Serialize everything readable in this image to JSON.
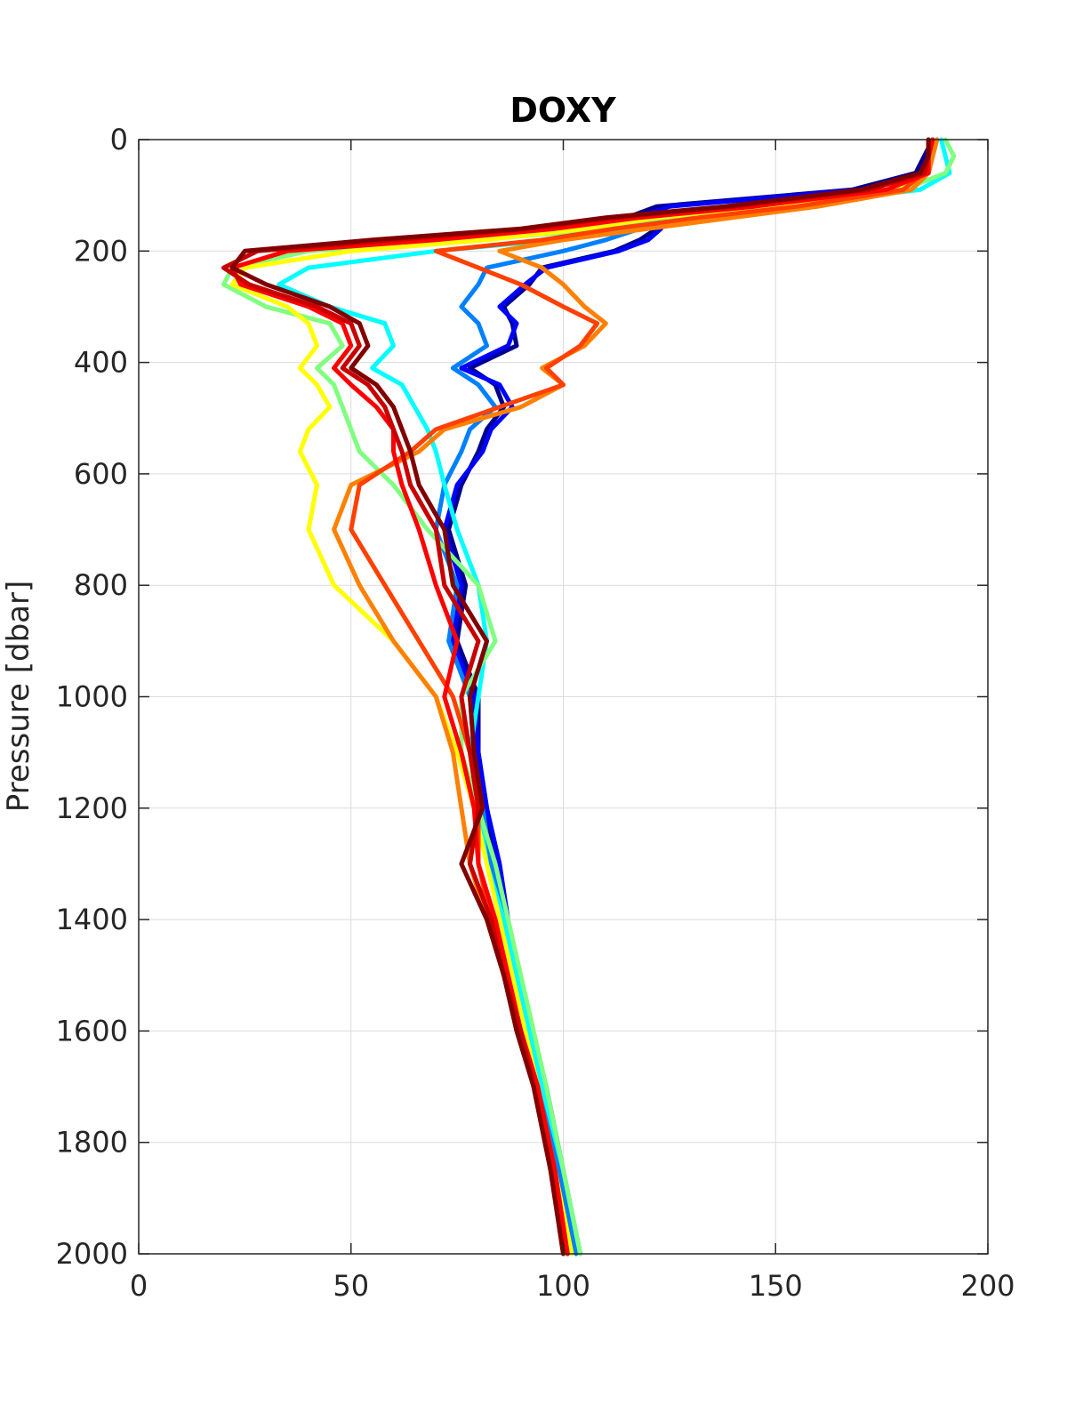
{
  "chart_data": {
    "type": "line",
    "title": "DOXY",
    "xlabel": "",
    "ylabel": "Pressure [dbar]",
    "xlim": [
      0,
      200
    ],
    "ylim": [
      0,
      2000
    ],
    "y_reversed": true,
    "xticks": [
      "0",
      "50",
      "100",
      "150",
      "200"
    ],
    "yticks": [
      "0",
      "200",
      "400",
      "600",
      "800",
      "1000",
      "1200",
      "1400",
      "1600",
      "1800",
      "2000"
    ],
    "grid": true,
    "legend": "none",
    "colormap": "jet",
    "series": [
      {
        "color": "#00008f",
        "x": [
          187,
          185,
          183,
          168,
          122,
          115,
          122,
          118,
          112,
          95,
          92,
          86,
          88,
          89,
          78,
          84,
          86,
          82,
          80,
          76,
          73,
          77,
          75,
          80,
          80,
          82,
          84,
          86,
          88,
          91,
          95,
          99,
          104
        ],
        "y": [
          0,
          30,
          60,
          90,
          120,
          140,
          160,
          180,
          200,
          230,
          260,
          300,
          330,
          370,
          410,
          440,
          480,
          520,
          560,
          620,
          700,
          800,
          900,
          1000,
          1100,
          1200,
          1300,
          1400,
          1500,
          1600,
          1700,
          1850,
          2000
        ]
      },
      {
        "color": "#0000ff",
        "x": [
          188,
          186,
          184,
          170,
          125,
          117,
          123,
          120,
          113,
          96,
          91,
          85,
          89,
          87,
          76,
          85,
          88,
          83,
          81,
          75,
          72,
          76,
          74,
          79,
          80,
          82,
          85,
          87,
          89,
          92,
          96,
          100,
          104
        ],
        "y": [
          0,
          30,
          60,
          90,
          120,
          140,
          160,
          180,
          200,
          230,
          260,
          300,
          330,
          370,
          410,
          440,
          480,
          520,
          560,
          620,
          700,
          800,
          900,
          1000,
          1100,
          1200,
          1300,
          1400,
          1500,
          1600,
          1700,
          1850,
          2000
        ]
      },
      {
        "color": "#0080ff",
        "x": [
          188,
          187,
          186,
          178,
          140,
          120,
          118,
          110,
          100,
          82,
          80,
          76,
          80,
          82,
          74,
          80,
          84,
          78,
          76,
          72,
          70,
          75,
          73,
          78,
          79,
          81,
          83,
          86,
          88,
          92,
          95,
          99,
          103
        ],
        "y": [
          0,
          30,
          60,
          90,
          120,
          140,
          160,
          180,
          200,
          230,
          260,
          300,
          330,
          370,
          410,
          440,
          480,
          520,
          560,
          620,
          700,
          800,
          900,
          1000,
          1100,
          1200,
          1300,
          1400,
          1500,
          1600,
          1700,
          1850,
          2000
        ]
      },
      {
        "color": "#00ffff",
        "x": [
          189,
          190,
          191,
          184,
          150,
          128,
          115,
          98,
          70,
          40,
          33,
          45,
          58,
          60,
          55,
          62,
          65,
          68,
          70,
          72,
          75,
          80,
          82,
          80,
          78,
          80,
          82,
          86,
          89,
          92,
          95,
          100,
          104
        ],
        "y": [
          0,
          30,
          60,
          90,
          120,
          140,
          160,
          180,
          200,
          230,
          260,
          300,
          330,
          370,
          410,
          440,
          480,
          520,
          560,
          620,
          700,
          800,
          900,
          1000,
          1100,
          1200,
          1300,
          1400,
          1500,
          1600,
          1700,
          1850,
          2000
        ]
      },
      {
        "color": "#80ff80",
        "x": [
          190,
          192,
          190,
          180,
          150,
          125,
          110,
          80,
          40,
          22,
          20,
          30,
          45,
          48,
          42,
          46,
          48,
          50,
          52,
          60,
          68,
          80,
          84,
          76,
          76,
          80,
          84,
          87,
          90,
          93,
          96,
          100,
          104
        ],
        "y": [
          0,
          30,
          60,
          90,
          120,
          140,
          160,
          180,
          200,
          230,
          260,
          300,
          330,
          370,
          410,
          440,
          480,
          520,
          560,
          620,
          700,
          800,
          900,
          1000,
          1100,
          1200,
          1300,
          1400,
          1500,
          1600,
          1700,
          1850,
          2000
        ]
      },
      {
        "color": "#ffff00",
        "x": [
          186,
          186,
          185,
          178,
          148,
          122,
          105,
          82,
          50,
          25,
          22,
          35,
          40,
          42,
          38,
          42,
          45,
          40,
          38,
          42,
          40,
          46,
          60,
          70,
          75,
          79,
          82,
          85,
          88,
          91,
          94,
          98,
          102
        ],
        "y": [
          0,
          30,
          60,
          90,
          120,
          140,
          160,
          180,
          200,
          230,
          260,
          300,
          330,
          370,
          410,
          440,
          480,
          520,
          560,
          620,
          700,
          800,
          900,
          1000,
          1100,
          1200,
          1300,
          1400,
          1500,
          1600,
          1700,
          1850,
          2000
        ]
      },
      {
        "color": "#ff8000",
        "x": [
          188,
          187,
          186,
          182,
          160,
          140,
          120,
          100,
          85,
          95,
          100,
          105,
          110,
          105,
          95,
          100,
          90,
          72,
          66,
          50,
          46,
          52,
          60,
          70,
          74,
          76,
          78,
          82,
          86,
          90,
          94,
          98,
          101
        ],
        "y": [
          0,
          30,
          60,
          90,
          120,
          140,
          160,
          180,
          200,
          230,
          260,
          300,
          330,
          370,
          410,
          440,
          480,
          520,
          560,
          620,
          700,
          800,
          900,
          1000,
          1100,
          1200,
          1300,
          1400,
          1500,
          1600,
          1700,
          1850,
          2000
        ]
      },
      {
        "color": "#ff4000",
        "x": [
          187,
          186,
          185,
          180,
          155,
          132,
          112,
          95,
          70,
          80,
          90,
          100,
          108,
          104,
          96,
          100,
          85,
          70,
          64,
          52,
          50,
          58,
          66,
          74,
          78,
          80,
          80,
          83,
          87,
          90,
          94,
          98,
          101
        ],
        "y": [
          0,
          30,
          60,
          90,
          120,
          140,
          160,
          180,
          200,
          230,
          260,
          300,
          330,
          370,
          410,
          440,
          480,
          520,
          560,
          620,
          700,
          800,
          900,
          1000,
          1100,
          1200,
          1300,
          1400,
          1500,
          1600,
          1700,
          1850,
          2000
        ]
      },
      {
        "color": "#ff0000",
        "x": [
          187,
          186,
          186,
          176,
          145,
          118,
          98,
          70,
          35,
          22,
          24,
          40,
          48,
          50,
          46,
          50,
          56,
          60,
          60,
          62,
          66,
          70,
          75,
          72,
          76,
          79,
          80,
          84,
          87,
          90,
          94,
          98,
          101
        ],
        "y": [
          0,
          30,
          60,
          90,
          120,
          140,
          160,
          180,
          200,
          230,
          260,
          300,
          330,
          370,
          410,
          440,
          480,
          520,
          560,
          620,
          700,
          800,
          900,
          1000,
          1100,
          1200,
          1300,
          1400,
          1500,
          1600,
          1700,
          1850,
          2000
        ]
      },
      {
        "color": "#c80000",
        "x": [
          186,
          186,
          185,
          172,
          140,
          112,
          92,
          60,
          28,
          20,
          26,
          42,
          50,
          52,
          48,
          54,
          58,
          60,
          62,
          64,
          70,
          72,
          80,
          76,
          78,
          80,
          78,
          83,
          86,
          90,
          93,
          97,
          100
        ],
        "y": [
          0,
          30,
          60,
          90,
          120,
          140,
          160,
          180,
          200,
          230,
          260,
          300,
          330,
          370,
          410,
          440,
          480,
          520,
          560,
          620,
          700,
          800,
          900,
          1000,
          1100,
          1200,
          1300,
          1400,
          1500,
          1600,
          1700,
          1850,
          2000
        ]
      },
      {
        "color": "#800000",
        "x": [
          186,
          186,
          184,
          170,
          138,
          110,
          90,
          55,
          25,
          22,
          30,
          45,
          52,
          54,
          50,
          56,
          60,
          62,
          64,
          66,
          72,
          74,
          82,
          78,
          79,
          81,
          76,
          82,
          86,
          89,
          93,
          97,
          100
        ],
        "y": [
          0,
          30,
          60,
          90,
          120,
          140,
          160,
          180,
          200,
          230,
          260,
          300,
          330,
          370,
          410,
          440,
          480,
          520,
          560,
          620,
          700,
          800,
          900,
          1000,
          1100,
          1200,
          1300,
          1400,
          1500,
          1600,
          1700,
          1850,
          2000
        ]
      }
    ]
  }
}
